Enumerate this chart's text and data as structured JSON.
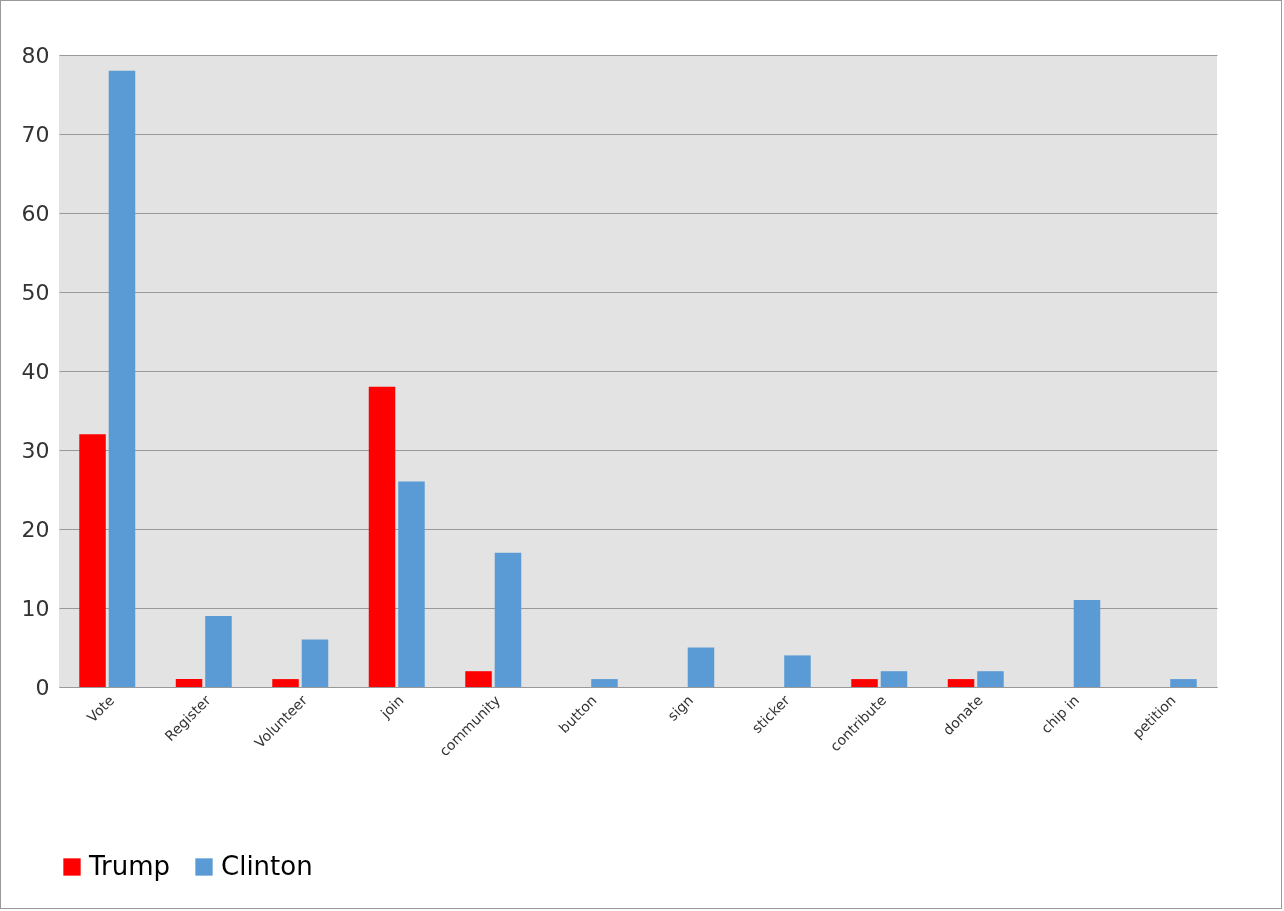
{
  "chart_data": {
    "type": "bar",
    "categories": [
      "Vote",
      "Register",
      "Volunteer",
      "join",
      "community",
      "button",
      "sign",
      "sticker",
      "contribute",
      "donate",
      "chip in",
      "petition"
    ],
    "series": [
      {
        "name": "Trump",
        "color": "#ff0000",
        "values": [
          32,
          1,
          1,
          38,
          2,
          0,
          0,
          0,
          1,
          1,
          0,
          0
        ]
      },
      {
        "name": "Clinton",
        "color": "#5b9bd5",
        "values": [
          78,
          9,
          6,
          26,
          17,
          1,
          5,
          4,
          2,
          2,
          11,
          1
        ]
      }
    ],
    "ylim": [
      0,
      80
    ],
    "yticks": [
      0,
      10,
      20,
      30,
      40,
      50,
      60,
      70,
      80
    ],
    "grid": "y",
    "legend": "bottom"
  }
}
